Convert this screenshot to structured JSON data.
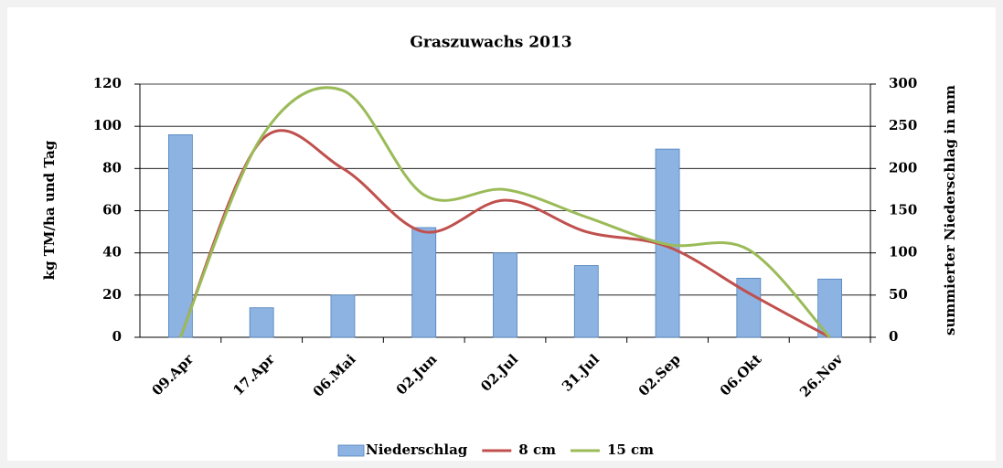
{
  "chart_data": {
    "type": "bar-line",
    "title": "Graszuwachs  2013",
    "ylabel": "kg TM/ha und Tag",
    "y2label": "summierter Niederschlag in mm",
    "categories": [
      "09.Apr",
      "17.Apr",
      "06.Mai",
      "02.Jun",
      "02.Jul",
      "31.Jul",
      "02.Sep",
      "06.Okt",
      "26.Nov"
    ],
    "series": [
      {
        "name": "Niederschlag",
        "type": "bar",
        "axis": "y2",
        "color": "#8db3e2",
        "values": [
          240,
          35,
          50,
          130,
          100,
          85,
          223,
          70,
          69
        ]
      },
      {
        "name": "8 cm",
        "type": "line",
        "color": "#c0504d",
        "values": [
          0,
          93.5,
          80,
          50,
          65,
          50,
          43,
          21,
          0
        ]
      },
      {
        "name": "15 cm",
        "type": "line",
        "color": "#9bbb59",
        "values": [
          0,
          95,
          117,
          67.5,
          70,
          57,
          44,
          41.5,
          0
        ]
      }
    ],
    "ylim": [
      0,
      120
    ],
    "yticks": [
      0,
      20,
      40,
      60,
      80,
      100,
      120
    ],
    "y2lim": [
      0,
      300
    ],
    "y2ticks": [
      0,
      50,
      100,
      150,
      200,
      250,
      300
    ],
    "grid": true,
    "legend": "bottom"
  }
}
